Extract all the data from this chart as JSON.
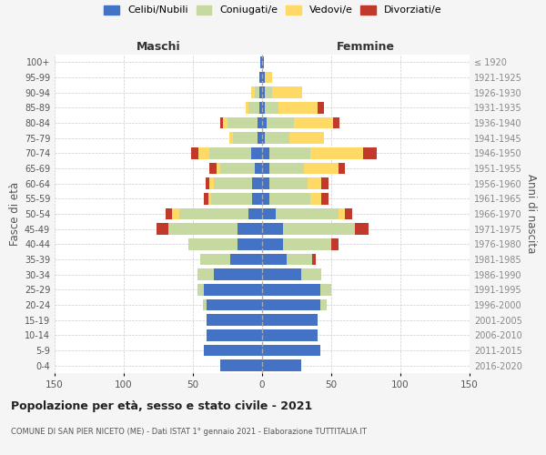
{
  "age_groups": [
    "0-4",
    "5-9",
    "10-14",
    "15-19",
    "20-24",
    "25-29",
    "30-34",
    "35-39",
    "40-44",
    "45-49",
    "50-54",
    "55-59",
    "60-64",
    "65-69",
    "70-74",
    "75-79",
    "80-84",
    "85-89",
    "90-94",
    "95-99",
    "100+"
  ],
  "birth_years": [
    "2016-2020",
    "2011-2015",
    "2006-2010",
    "2001-2005",
    "1996-2000",
    "1991-1995",
    "1986-1990",
    "1981-1985",
    "1976-1980",
    "1971-1975",
    "1966-1970",
    "1961-1965",
    "1956-1960",
    "1951-1955",
    "1946-1950",
    "1941-1945",
    "1936-1940",
    "1931-1935",
    "1926-1930",
    "1921-1925",
    "≤ 1920"
  ],
  "maschi": {
    "celibi": [
      30,
      42,
      40,
      40,
      40,
      42,
      35,
      23,
      18,
      18,
      10,
      7,
      7,
      5,
      8,
      3,
      3,
      2,
      2,
      2,
      1
    ],
    "coniugati": [
      0,
      0,
      0,
      0,
      3,
      5,
      12,
      22,
      35,
      50,
      50,
      30,
      28,
      25,
      30,
      18,
      22,
      8,
      3,
      0,
      0
    ],
    "vedovi": [
      0,
      0,
      0,
      0,
      0,
      0,
      0,
      0,
      0,
      0,
      5,
      2,
      3,
      3,
      8,
      3,
      3,
      2,
      3,
      0,
      0
    ],
    "divorziati": [
      0,
      0,
      0,
      0,
      0,
      0,
      0,
      0,
      0,
      8,
      5,
      3,
      3,
      5,
      5,
      0,
      2,
      0,
      0,
      0,
      0
    ]
  },
  "femmine": {
    "nubili": [
      28,
      42,
      40,
      40,
      42,
      42,
      28,
      18,
      15,
      15,
      10,
      5,
      5,
      5,
      5,
      2,
      3,
      2,
      2,
      2,
      1
    ],
    "coniugate": [
      0,
      0,
      0,
      0,
      5,
      8,
      15,
      18,
      35,
      52,
      45,
      30,
      28,
      25,
      30,
      18,
      20,
      10,
      5,
      0,
      0
    ],
    "vedove": [
      0,
      0,
      0,
      0,
      0,
      0,
      0,
      0,
      0,
      0,
      5,
      8,
      10,
      25,
      38,
      25,
      28,
      28,
      22,
      5,
      0
    ],
    "divorziate": [
      0,
      0,
      0,
      0,
      0,
      0,
      0,
      3,
      5,
      10,
      5,
      5,
      5,
      5,
      10,
      0,
      5,
      5,
      0,
      0,
      0
    ]
  },
  "colors": {
    "celibi_nubili": "#4472c4",
    "coniugati": "#c5d9a0",
    "vedovi": "#ffd966",
    "divorziati": "#c0392b"
  },
  "xlim": 150,
  "title": "Popolazione per età, sesso e stato civile - 2021",
  "subtitle": "COMUNE DI SAN PIER NICETO (ME) - Dati ISTAT 1° gennaio 2021 - Elaborazione TUTTITALIA.IT",
  "ylabel_left": "Fasce di età",
  "ylabel_right": "Anni di nascita",
  "xlabel_maschi": "Maschi",
  "xlabel_femmine": "Femmine",
  "bg_color": "#f5f5f5",
  "plot_bg": "#ffffff"
}
